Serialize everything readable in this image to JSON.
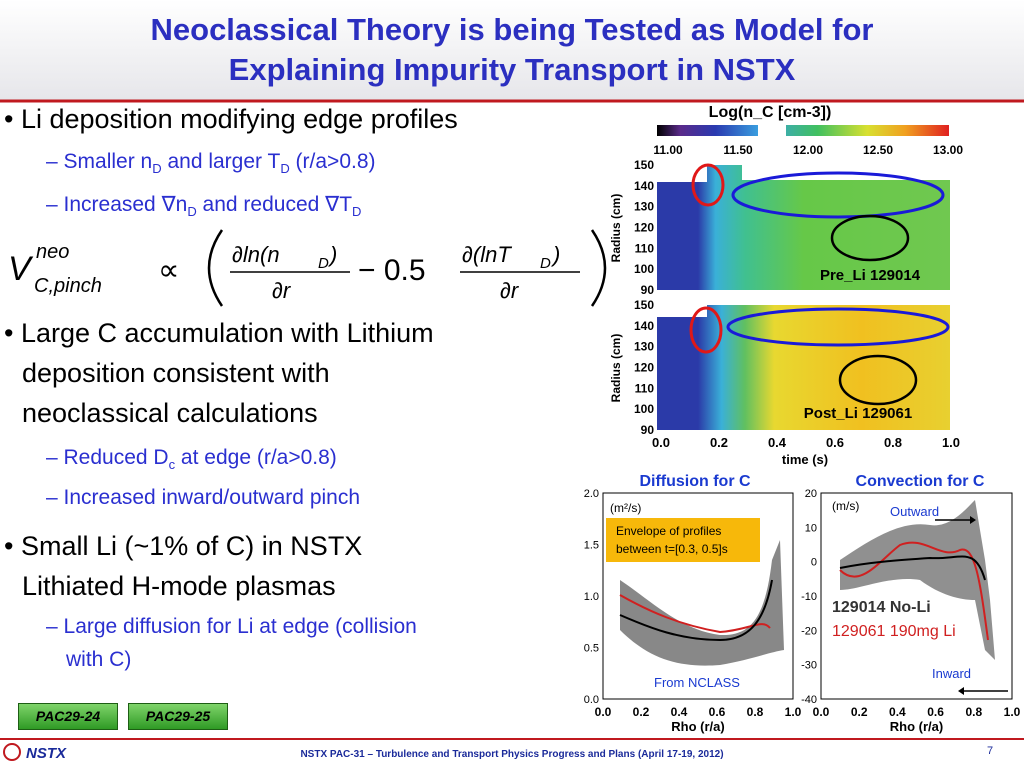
{
  "header": {
    "title": [
      "Neoclassical Theory is being Tested as Model for",
      "Explaining Impurity Transport in NSTX"
    ]
  },
  "bullets": [
    {
      "level": 1,
      "lines": [
        [
          "Li deposition modifying edge profiles"
        ]
      ]
    },
    {
      "level": 2,
      "lines": [
        [
          "Smaller n",
          {
            "sub": "D"
          },
          " and larger T",
          {
            "sub": "D"
          },
          " (r/a>0.8)"
        ]
      ]
    },
    {
      "level": 2,
      "lines": [
        [
          "Increased ∇n",
          {
            "sub": "D"
          },
          " and reduced ∇T",
          {
            "sub": "D"
          }
        ]
      ]
    },
    {
      "level": 1,
      "lines": [
        [
          "Large C accumulation with Lithium"
        ],
        [
          "deposition consistent with"
        ],
        [
          "neoclassical calculations"
        ]
      ]
    },
    {
      "level": 2,
      "lines": [
        [
          "Reduced D",
          {
            "sub": "c"
          },
          " at edge (r/a>0.8)"
        ]
      ]
    },
    {
      "level": 2,
      "lines": [
        [
          "Increased inward/outward pinch"
        ]
      ]
    },
    {
      "level": 1,
      "lines": [
        [
          "Small Li (~1% of C) in NSTX"
        ],
        [
          "Lithiated H-mode plasmas"
        ]
      ]
    },
    {
      "level": 2,
      "lines": [
        [
          "Large diffusion for Li at edge (collision"
        ],
        [
          "with C)"
        ]
      ]
    }
  ],
  "equation": {
    "base": "V",
    "sup": "neo",
    "sub": "C,pinch",
    "relation": "∝",
    "num1": "∂ln(n",
    "num1_sub": "D",
    "num1_end": ")",
    "den1": "∂r",
    "minus": "− 0.5",
    "num2": "∂(lnT",
    "num2_sub": "D",
    "num2_end": ")",
    "den2": "∂r"
  },
  "contour": {
    "title": "Log(n_C [cm-3])",
    "colorbar_ticks": [
      "11.00",
      "11.50",
      "12.00",
      "12.50",
      "13.00"
    ],
    "y_label": "Radius (cm)",
    "y_ticks": [
      "150",
      "140",
      "130",
      "120",
      "110",
      "100",
      "90"
    ],
    "panels": [
      "Pre_Li 129014",
      "Post_Li 129061"
    ],
    "x_ticks": [
      "0.0",
      "0.2",
      "0.4",
      "0.6",
      "0.8",
      "1.0"
    ],
    "x_label": "time (s)"
  },
  "diffusion": {
    "title": "Diffusion for C",
    "unit": "(m²/s)",
    "note": [
      "Envelope of profiles",
      "between t=[0.3, 0.5]s"
    ],
    "source": "From NCLASS",
    "y_ticks": [
      "2.0",
      "1.5",
      "1.0",
      "0.5",
      "0.0"
    ],
    "x_ticks": [
      "0.0",
      "0.2",
      "0.4",
      "0.6",
      "0.8",
      "1.0"
    ],
    "x_label": "Rho (r/a)"
  },
  "convection": {
    "title": "Convection for C",
    "unit": "(m/s)",
    "outward": "Outward",
    "inward": "Inward",
    "legend": [
      "129014 No-Li",
      "129061 190mg Li"
    ],
    "y_ticks": [
      "20",
      "10",
      "0",
      "-10",
      "-20",
      "-30",
      "-40"
    ],
    "x_ticks": [
      "0.0",
      "0.2",
      "0.4",
      "0.6",
      "0.8",
      "1.0"
    ],
    "x_label": "Rho (r/a)"
  },
  "footer": {
    "tags": [
      "PAC29-24",
      "PAC29-25"
    ],
    "logo": "NSTX",
    "text": "NSTX PAC-31 – Turbulence and Transport Physics Progress and Plans (April 17-19, 2012)",
    "page": "7"
  }
}
